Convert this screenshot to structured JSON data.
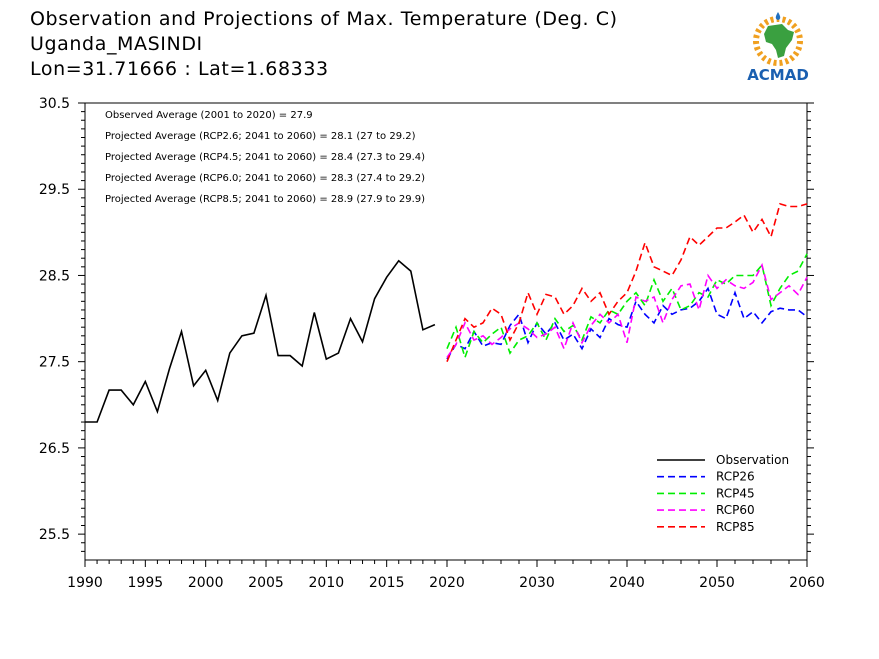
{
  "title": {
    "line1": "Observation and Projections of Max. Temperature (Deg. C)",
    "line2": "Uganda_MASINDI",
    "line3": "Lon=31.71666 : Lat=1.68333"
  },
  "logo": {
    "text": "ACMAD",
    "icon": "africa-sun-logo-icon"
  },
  "stats": [
    "Observed Average (2001 to 2020) = 27.9",
    "Projected Average (RCP2.6; 2041 to 2060) = 28.1 (27 to 29.2)",
    "Projected Average (RCP4.5; 2041 to 2060) = 28.4 (27.3 to 29.4)",
    "Projected Average (RCP6.0; 2041 to 2060) = 28.3 (27.4 to 29.2)",
    "Projected Average (RCP8.5; 2041 to 2060) = 28.9 (27.9 to 29.9)"
  ],
  "chart_data": {
    "type": "line",
    "xlim": [
      1990,
      2060
    ],
    "ylim": [
      25.2,
      30.5
    ],
    "x_ticks": [
      1990,
      1995,
      2000,
      2005,
      2010,
      2015,
      2020,
      2030,
      2040,
      2050,
      2060
    ],
    "y_ticks": [
      "25.5",
      "26.5",
      "27.5",
      "28.5",
      "29.5",
      "30.5"
    ],
    "legend_position": "bottom-right",
    "series": [
      {
        "name": "Observation",
        "color": "#000000",
        "style": "solid",
        "x": [
          1990,
          1991,
          1992,
          1993,
          1994,
          1995,
          1996,
          1997,
          1998,
          1999,
          2000,
          2001,
          2002,
          2003,
          2004,
          2005,
          2006,
          2007,
          2008,
          2009,
          2010,
          2011,
          2012,
          2013,
          2014,
          2015,
          2016,
          2017,
          2018,
          2019
        ],
        "y": [
          26.8,
          26.8,
          27.17,
          27.17,
          27.0,
          27.27,
          26.92,
          27.42,
          27.85,
          27.22,
          27.4,
          27.05,
          27.6,
          27.8,
          27.83,
          28.27,
          27.57,
          27.57,
          27.45,
          28.07,
          27.53,
          27.6,
          28.0,
          27.73,
          28.23,
          28.48,
          28.67,
          28.55,
          27.87,
          27.93
        ]
      },
      {
        "name": "RCP26",
        "color": "#0000ff",
        "style": "dashed",
        "x": [
          2020,
          2021,
          2022,
          2023,
          2024,
          2025,
          2026,
          2027,
          2028,
          2029,
          2030,
          2031,
          2032,
          2033,
          2034,
          2035,
          2036,
          2037,
          2038,
          2039,
          2040,
          2041,
          2042,
          2043,
          2044,
          2045,
          2046,
          2047,
          2048,
          2049,
          2050,
          2051,
          2052,
          2053,
          2054,
          2055,
          2056,
          2057,
          2058,
          2059,
          2060
        ],
        "y": [
          27.53,
          27.7,
          27.65,
          27.85,
          27.68,
          27.72,
          27.7,
          27.92,
          28.05,
          27.72,
          27.95,
          27.82,
          27.95,
          27.75,
          27.82,
          27.65,
          27.88,
          27.78,
          28.0,
          27.93,
          27.9,
          28.2,
          28.05,
          27.95,
          28.15,
          28.05,
          28.1,
          28.12,
          28.2,
          28.35,
          28.05,
          28.0,
          28.3,
          28.0,
          28.08,
          27.95,
          28.08,
          28.12,
          28.1,
          28.1,
          28.02
        ]
      },
      {
        "name": "RCP45",
        "color": "#00ee00",
        "style": "dashed",
        "x": [
          2020,
          2021,
          2022,
          2023,
          2024,
          2025,
          2026,
          2027,
          2028,
          2029,
          2030,
          2031,
          2032,
          2033,
          2034,
          2035,
          2036,
          2037,
          2038,
          2039,
          2040,
          2041,
          2042,
          2043,
          2044,
          2045,
          2046,
          2047,
          2048,
          2049,
          2050,
          2051,
          2052,
          2053,
          2054,
          2055,
          2056,
          2057,
          2058,
          2059,
          2060
        ],
        "y": [
          27.65,
          27.9,
          27.55,
          27.85,
          27.72,
          27.82,
          27.9,
          27.6,
          27.75,
          27.8,
          27.95,
          27.75,
          28.0,
          27.85,
          27.92,
          27.75,
          28.02,
          27.95,
          28.1,
          28.05,
          28.2,
          28.3,
          28.15,
          28.45,
          28.2,
          28.35,
          28.1,
          28.15,
          28.3,
          28.25,
          28.45,
          28.4,
          28.5,
          28.5,
          28.5,
          28.62,
          28.15,
          28.35,
          28.5,
          28.55,
          28.75
        ]
      },
      {
        "name": "RCP60",
        "color": "#ff00ff",
        "style": "dashed",
        "x": [
          2020,
          2021,
          2022,
          2023,
          2024,
          2025,
          2026,
          2027,
          2028,
          2029,
          2030,
          2031,
          2032,
          2033,
          2034,
          2035,
          2036,
          2037,
          2038,
          2039,
          2040,
          2041,
          2042,
          2043,
          2044,
          2045,
          2046,
          2047,
          2048,
          2049,
          2050,
          2051,
          2052,
          2053,
          2054,
          2055,
          2056,
          2057,
          2058,
          2059,
          2060
        ],
        "y": [
          27.55,
          27.7,
          27.95,
          27.75,
          27.8,
          27.7,
          27.78,
          27.88,
          27.95,
          27.88,
          27.78,
          27.82,
          27.9,
          27.65,
          27.95,
          27.72,
          27.92,
          28.05,
          27.95,
          28.05,
          27.72,
          28.25,
          28.2,
          28.25,
          27.95,
          28.22,
          28.38,
          28.4,
          28.1,
          28.5,
          28.35,
          28.45,
          28.38,
          28.35,
          28.42,
          28.62,
          28.22,
          28.3,
          28.38,
          28.28,
          28.48
        ]
      },
      {
        "name": "RCP85",
        "color": "#ff0000",
        "style": "dashed",
        "x": [
          2020,
          2021,
          2022,
          2023,
          2024,
          2025,
          2026,
          2027,
          2028,
          2029,
          2030,
          2031,
          2032,
          2033,
          2034,
          2035,
          2036,
          2037,
          2038,
          2039,
          2040,
          2041,
          2042,
          2043,
          2044,
          2045,
          2046,
          2047,
          2048,
          2049,
          2050,
          2051,
          2052,
          2053,
          2054,
          2055,
          2056,
          2057,
          2058,
          2059,
          2060
        ],
        "y": [
          27.5,
          27.75,
          28.0,
          27.9,
          27.95,
          28.12,
          28.05,
          27.75,
          27.95,
          28.3,
          28.05,
          28.28,
          28.25,
          28.05,
          28.15,
          28.35,
          28.2,
          28.3,
          28.05,
          28.2,
          28.3,
          28.55,
          28.88,
          28.6,
          28.55,
          28.5,
          28.68,
          28.95,
          28.85,
          28.95,
          29.05,
          29.05,
          29.12,
          29.2,
          29.0,
          29.15,
          28.95,
          29.33,
          29.3,
          29.3,
          29.33
        ]
      }
    ]
  }
}
